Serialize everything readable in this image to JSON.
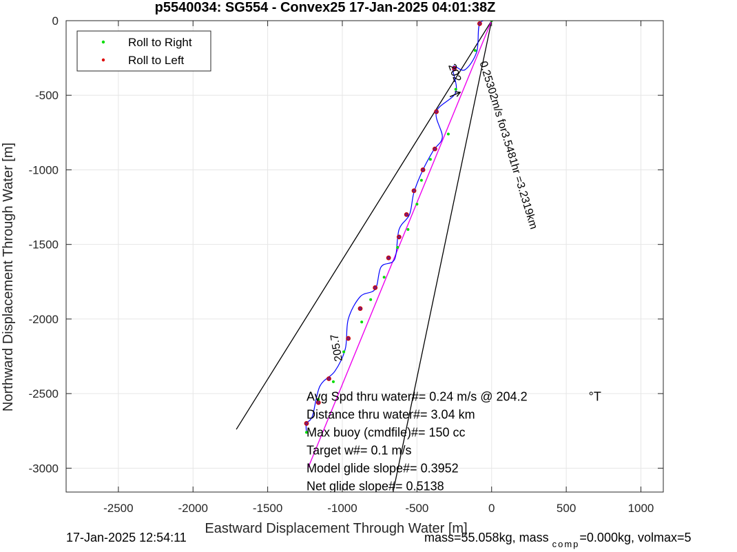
{
  "chart_data": {
    "type": "line",
    "title": "p5540034: SG554 - Convex25 17-Jan-2025 04:01:38Z",
    "xlabel": "Eastward Displacement Through Water [m]",
    "ylabel": "Northward Displacement Through Water [m]",
    "xlim": [
      -2850,
      1150
    ],
    "ylim": [
      -3160,
      0
    ],
    "xticks": [
      -2500,
      -2000,
      -1500,
      -1000,
      -500,
      0,
      500,
      1000
    ],
    "yticks": [
      0,
      -500,
      -1000,
      -1500,
      -2000,
      -2500,
      -3000
    ],
    "grid": true,
    "legend_position": "top-left",
    "series": [
      {
        "name": "Roll to Right",
        "color": "#00dd00",
        "marker": "point"
      },
      {
        "name": "Roll to Left",
        "color": "#dd0000",
        "marker": "point"
      }
    ],
    "track": [
      [
        0,
        0
      ],
      [
        -80,
        -20
      ],
      [
        -100,
        -210
      ],
      [
        -180,
        -330
      ],
      [
        -260,
        -310
      ],
      [
        -240,
        -480
      ],
      [
        -370,
        -610
      ],
      [
        -330,
        -780
      ],
      [
        -390,
        -870
      ],
      [
        -460,
        -1000
      ],
      [
        -520,
        -1150
      ],
      [
        -550,
        -1300
      ],
      [
        -620,
        -1400
      ],
      [
        -650,
        -1600
      ],
      [
        -740,
        -1650
      ],
      [
        -780,
        -1800
      ],
      [
        -880,
        -1850
      ],
      [
        -960,
        -2000
      ],
      [
        -980,
        -2200
      ],
      [
        -1050,
        -2350
      ],
      [
        -1150,
        -2450
      ],
      [
        -1200,
        -2650
      ],
      [
        -1240,
        -2700
      ],
      [
        -1240,
        -2760
      ]
    ],
    "roll_right_points": [
      [
        0,
        0
      ],
      [
        -110,
        -200
      ],
      [
        -240,
        -460
      ],
      [
        -290,
        -760
      ],
      [
        -410,
        -930
      ],
      [
        -470,
        -1070
      ],
      [
        -500,
        -1230
      ],
      [
        -560,
        -1400
      ],
      [
        -630,
        -1520
      ],
      [
        -720,
        -1720
      ],
      [
        -810,
        -1870
      ],
      [
        -870,
        -2020
      ],
      [
        -990,
        -2220
      ],
      [
        -1060,
        -2420
      ],
      [
        -1160,
        -2540
      ],
      [
        -1240,
        -2760
      ]
    ],
    "roll_left_points": [
      [
        -80,
        -20
      ],
      [
        -250,
        -320
      ],
      [
        -370,
        -610
      ],
      [
        -380,
        -860
      ],
      [
        -460,
        -1000
      ],
      [
        -520,
        -1140
      ],
      [
        -570,
        -1300
      ],
      [
        -620,
        -1450
      ],
      [
        -690,
        -1590
      ],
      [
        -780,
        -1790
      ],
      [
        -880,
        -1930
      ],
      [
        -960,
        -2130
      ],
      [
        -1090,
        -2400
      ],
      [
        -1160,
        -2560
      ],
      [
        -1240,
        -2700
      ]
    ],
    "net_line": [
      [
        0,
        0
      ],
      [
        -1230,
        -3000
      ]
    ],
    "arrow": {
      "from": [
        -280,
        -510
      ],
      "to": [
        -210,
        -480
      ]
    },
    "heading_lines": [
      {
        "from": [
          0,
          0
        ],
        "to": [
          -1710,
          -2740
        ]
      },
      {
        "from": [
          0,
          0
        ],
        "to": [
          -660,
          -3160
        ]
      }
    ],
    "rotated_labels": [
      {
        "text": "202",
        "x": -290,
        "y": -300,
        "angle": 70
      },
      {
        "text": "0.25302m/s for3.5481hr =3.2319km",
        "x": -80,
        "y": -280,
        "angle": 73
      },
      {
        "text": "205.7",
        "x": -1000,
        "y": -2280,
        "angle": 260
      }
    ],
    "annotations": [
      {
        "text": "Avg Spd thru water#=  0.24 m/s @ 204.2",
        "x": -1240,
        "y": -2520
      },
      {
        "text": "°T",
        "x": 650,
        "y": -2520
      },
      {
        "text": "Distance thru water#=  3.04 km",
        "x": -1240,
        "y": -2640
      },
      {
        "text": "Max buoy (cmdfile)#= 150 cc",
        "x": -1240,
        "y": -2760
      },
      {
        "text": "Target w#= 0.1 m/s",
        "x": -1240,
        "y": -2880
      },
      {
        "text": "Model glide slope#= 0.3952",
        "x": -1240,
        "y": -3000
      },
      {
        "text": "Net glide slope#= 0.5138",
        "x": -1240,
        "y": -3120
      }
    ]
  },
  "footer": {
    "timestamp": "17-Jan-2025 12:54:11",
    "mass_text": "mass=55.058kg, mass",
    "mass_sub": "comp",
    "mass_tail": "=0.000kg, volmax=5"
  }
}
